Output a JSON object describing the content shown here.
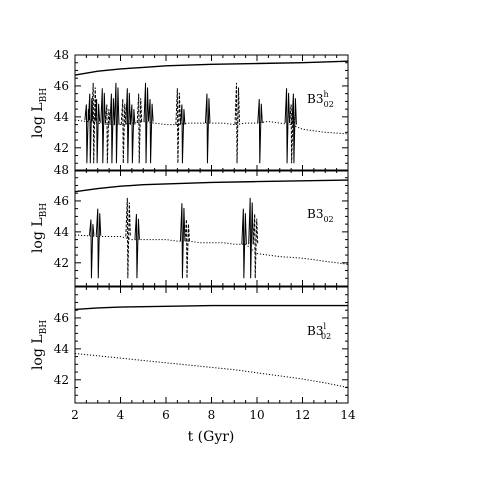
{
  "chart_data": {
    "type": "line",
    "x_axis": {
      "label": "t (Gyr)",
      "range": [
        2,
        14
      ],
      "ticks": [
        2,
        4,
        6,
        8,
        10,
        12,
        14
      ],
      "tick_labels": [
        "2",
        "4",
        "6",
        "8",
        "10",
        "12",
        "14"
      ]
    },
    "panels": [
      {
        "id": "top",
        "label_main": "B3",
        "label_sub": "02",
        "label_sup": "h",
        "ylabel": "log L",
        "ylabel_sub": "BH",
        "ylim": [
          40.5,
          48
        ],
        "y_tick_labels": [
          "48",
          "46",
          "44",
          "42"
        ],
        "y_ticks": [
          48,
          46,
          44,
          42
        ],
        "series": [
          {
            "style": "solid",
            "x": [
              2,
              3,
              4,
              5,
              6,
              8,
              10,
              12,
              14
            ],
            "y": [
              46.7,
              46.95,
              47.1,
              47.2,
              47.3,
              47.4,
              47.45,
              47.5,
              47.6
            ]
          },
          {
            "style": "dotted",
            "x": [
              2.0,
              2.5,
              3.0,
              3.5,
              4.0,
              4.5,
              5.0,
              5.5,
              6.0,
              6.5,
              7.0,
              7.5,
              8.0,
              8.5,
              9.0,
              9.5,
              10.0,
              10.5,
              11.0,
              11.5,
              12.0,
              12.5,
              13.0,
              13.5,
              14.0
            ],
            "y": [
              43.8,
              43.7,
              43.6,
              43.5,
              43.5,
              43.6,
              43.7,
              43.6,
              43.5,
              43.5,
              43.6,
              43.6,
              43.6,
              43.6,
              43.5,
              43.6,
              43.6,
              43.7,
              43.6,
              43.5,
              43.2,
              43.1,
              43.0,
              42.95,
              42.9
            ],
            "bursts": [
              2.5,
              2.65,
              2.8,
              2.95,
              3.2,
              3.4,
              3.6,
              3.8,
              4.1,
              4.3,
              4.5,
              4.8,
              5.1,
              5.3,
              6.5,
              6.7,
              7.8,
              9.1,
              10.1,
              11.3,
              11.5,
              11.6
            ]
          }
        ]
      },
      {
        "id": "middle",
        "label_main": "B3",
        "label_sub": "02",
        "label_sup": "",
        "ylabel": "log L",
        "ylabel_sub": "BH",
        "ylim": [
          40.5,
          48
        ],
        "y_tick_labels": [
          "48",
          "46",
          "44",
          "42"
        ],
        "y_ticks": [
          48,
          46,
          44,
          42
        ],
        "series": [
          {
            "style": "solid",
            "x": [
              2,
              3,
              4,
              5,
              6,
              8,
              10,
              12,
              14
            ],
            "y": [
              46.6,
              46.8,
              46.95,
              47.05,
              47.1,
              47.2,
              47.25,
              47.3,
              47.35
            ]
          },
          {
            "style": "dotted",
            "x": [
              2.0,
              2.5,
              3.0,
              3.5,
              4.0,
              4.5,
              5.0,
              5.5,
              6.0,
              6.5,
              7.0,
              7.5,
              8.0,
              8.5,
              9.0,
              9.5,
              10.0,
              10.5,
              11.0,
              11.5,
              12.0,
              12.5,
              13.0,
              13.5,
              14.0
            ],
            "y": [
              43.8,
              43.75,
              43.7,
              43.7,
              43.7,
              43.5,
              43.5,
              43.5,
              43.5,
              43.4,
              43.4,
              43.3,
              43.3,
              43.3,
              43.2,
              43.2,
              42.6,
              42.5,
              42.4,
              42.35,
              42.3,
              42.2,
              42.1,
              42.0,
              41.9
            ],
            "bursts": [
              2.7,
              3.0,
              4.3,
              4.7,
              6.7,
              6.9,
              9.4,
              9.7,
              9.9
            ]
          }
        ]
      },
      {
        "id": "bottom",
        "label_main": "B3",
        "label_sub": "02",
        "label_sup": "l",
        "ylabel": "log L",
        "ylabel_sub": "BH",
        "ylim": [
          40.5,
          48
        ],
        "y_tick_labels": [
          "46",
          "44",
          "42"
        ],
        "y_ticks": [
          46,
          44,
          42
        ],
        "series": [
          {
            "style": "solid",
            "x": [
              2,
              3,
              4,
              6,
              8,
              10,
              12,
              14
            ],
            "y": [
              46.55,
              46.65,
              46.7,
              46.75,
              46.8,
              46.8,
              46.8,
              46.8
            ]
          },
          {
            "style": "dotted",
            "x": [
              2,
              3,
              4,
              5,
              6,
              7,
              8,
              9,
              10,
              11,
              12,
              13,
              14
            ],
            "y": [
              43.7,
              43.55,
              43.4,
              43.25,
              43.1,
              42.95,
              42.8,
              42.65,
              42.45,
              42.25,
              42.05,
              41.8,
              41.5
            ]
          }
        ]
      }
    ]
  }
}
